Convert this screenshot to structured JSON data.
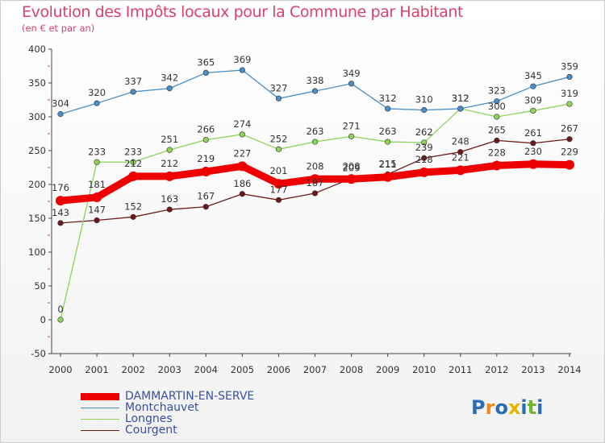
{
  "chart_title": "Evolution des Impôts locaux pour la Commune par Habitant",
  "chart_subtitle": "(en € et par an)",
  "logo_text": "Proxiti",
  "chart_data": {
    "type": "line",
    "title": "Evolution des Impôts locaux pour la Commune par Habitant",
    "subtitle": "(en € et par an)",
    "xlabel": "",
    "ylabel": "",
    "ylim": [
      -50,
      400
    ],
    "yticks": [
      -50,
      0,
      50,
      100,
      150,
      200,
      250,
      300,
      350,
      400
    ],
    "grid": false,
    "legend_position": "bottom-left",
    "categories": [
      "2000",
      "2001",
      "2002",
      "2003",
      "2004",
      "2005",
      "2006",
      "2007",
      "2008",
      "2009",
      "2010",
      "2011",
      "2012",
      "2013",
      "2014"
    ],
    "series": [
      {
        "name": "DAMMARTIN-EN-SERVE",
        "color": "#ee0000",
        "values": [
          176,
          181,
          212,
          212,
          219,
          227,
          201,
          208,
          208,
          211,
          218,
          221,
          228,
          230,
          229
        ]
      },
      {
        "name": "Montchauvet",
        "color": "#4a8ec8",
        "values": [
          304,
          320,
          337,
          342,
          365,
          369,
          327,
          338,
          349,
          312,
          310,
          312,
          323,
          345,
          359
        ]
      },
      {
        "name": "Longnes",
        "color": "#8fd35a",
        "values": [
          0,
          233,
          233,
          251,
          266,
          274,
          252,
          263,
          271,
          263,
          262,
          312,
          300,
          309,
          319
        ]
      },
      {
        "name": "Courgent",
        "color": "#6b1a1a",
        "values": [
          143,
          147,
          152,
          163,
          167,
          186,
          177,
          187,
          209,
          215,
          239,
          248,
          265,
          261,
          267
        ]
      }
    ]
  }
}
